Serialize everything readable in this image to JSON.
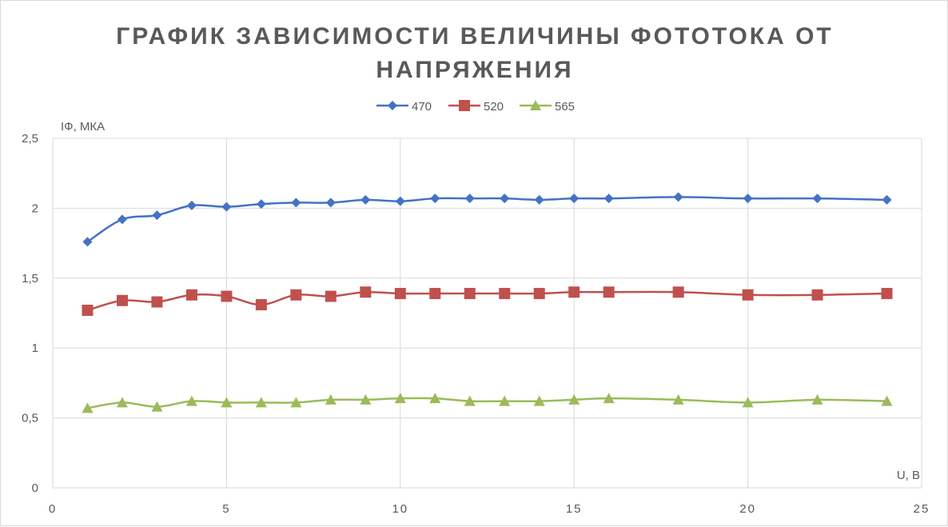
{
  "chart_data": {
    "type": "line",
    "title_line1": "ГРАФИК ЗАВИСИМОСТИ ВЕЛИЧИНЫ ФОТОТОКА ОТ",
    "title_line2": "НАПРЯЖЕНИЯ",
    "xlabel": "U, В",
    "ylabel": "IФ, МКА",
    "xlim": [
      0,
      25
    ],
    "ylim": [
      0,
      2.5
    ],
    "x_ticks": [
      "0",
      "5",
      "10",
      "15",
      "20",
      "25"
    ],
    "y_ticks": [
      "0",
      "0,5",
      "1",
      "1,5",
      "2",
      "2,5"
    ],
    "grid": true,
    "legend_position": "top",
    "series": [
      {
        "name": "470",
        "color": "#4472c4",
        "marker": "diamond",
        "x": [
          1,
          2,
          3,
          4,
          5,
          6,
          7,
          8,
          9,
          10,
          11,
          12,
          13,
          14,
          15,
          16,
          18,
          20,
          22,
          24
        ],
        "values": [
          1.76,
          1.92,
          1.95,
          2.02,
          2.01,
          2.03,
          2.04,
          2.04,
          2.06,
          2.05,
          2.07,
          2.07,
          2.07,
          2.06,
          2.07,
          2.07,
          2.08,
          2.07,
          2.07,
          2.06
        ]
      },
      {
        "name": "520",
        "color": "#c0504d",
        "marker": "square",
        "x": [
          1,
          2,
          3,
          4,
          5,
          6,
          7,
          8,
          9,
          10,
          11,
          12,
          13,
          14,
          15,
          16,
          18,
          20,
          22,
          24
        ],
        "values": [
          1.27,
          1.34,
          1.33,
          1.38,
          1.37,
          1.31,
          1.38,
          1.37,
          1.4,
          1.39,
          1.39,
          1.39,
          1.39,
          1.39,
          1.4,
          1.4,
          1.4,
          1.38,
          1.38,
          1.39
        ]
      },
      {
        "name": "565",
        "color": "#9bbb59",
        "marker": "triangle",
        "x": [
          1,
          2,
          3,
          4,
          5,
          6,
          7,
          8,
          9,
          10,
          11,
          12,
          13,
          14,
          15,
          16,
          18,
          20,
          22,
          24
        ],
        "values": [
          0.57,
          0.61,
          0.58,
          0.62,
          0.61,
          0.61,
          0.61,
          0.63,
          0.63,
          0.64,
          0.64,
          0.62,
          0.62,
          0.62,
          0.63,
          0.64,
          0.63,
          0.61,
          0.63,
          0.62
        ]
      }
    ]
  }
}
